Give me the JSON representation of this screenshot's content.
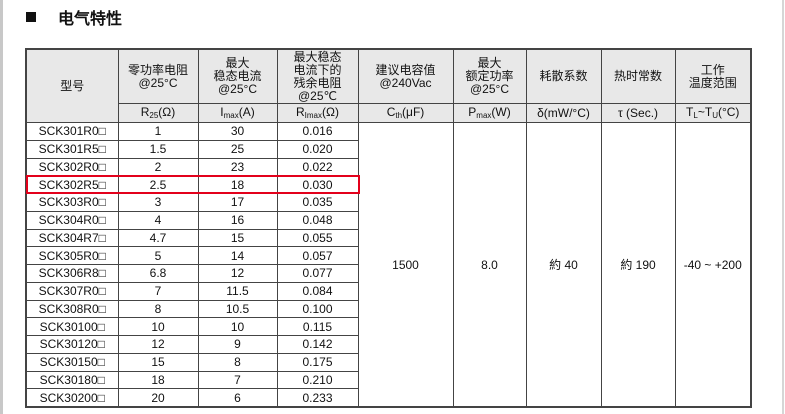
{
  "section": {
    "title": "电气特性"
  },
  "table": {
    "headers": [
      {
        "label": "型号",
        "unit": ""
      },
      {
        "label": "零功率电阻\n@25°C",
        "unit_main": "R",
        "unit_sub": "25",
        "unit_rest": "(Ω)"
      },
      {
        "label": "最大\n稳态电流\n@25°C",
        "unit_main": "I",
        "unit_sub": "max",
        "unit_rest": "(A)"
      },
      {
        "label": "最大稳态\n电流下的\n残余电阻\n@25℃",
        "unit_main": "R",
        "unit_sub": "Imax",
        "unit_rest": "(Ω)"
      },
      {
        "label": "建议电容值\n@240Vac",
        "unit_main": "C",
        "unit_sub": "th",
        "unit_rest": "(μF)"
      },
      {
        "label": "最大\n额定功率\n@25°C",
        "unit_main": "P",
        "unit_sub": "max",
        "unit_rest": "(W)"
      },
      {
        "label": "耗散系数",
        "unit_main": "δ(mW/°C)",
        "unit_sub": "",
        "unit_rest": ""
      },
      {
        "label": "热时常数",
        "unit_main": "τ (Sec.)",
        "unit_sub": "",
        "unit_rest": ""
      },
      {
        "label": "工作\n温度范围",
        "unit_main": "T",
        "unit_sub": "L",
        "unit_rest": "~T",
        "unit_sub2": "U",
        "unit_rest2": "(°C)"
      }
    ],
    "rows": [
      [
        "SCK301R0□",
        "1",
        "30",
        "0.016"
      ],
      [
        "SCK301R5□",
        "1.5",
        "25",
        "0.020"
      ],
      [
        "SCK302R0□",
        "2",
        "23",
        "0.022"
      ],
      [
        "SCK302R5□",
        "2.5",
        "18",
        "0.030"
      ],
      [
        "SCK303R0□",
        "3",
        "17",
        "0.035"
      ],
      [
        "SCK304R0□",
        "4",
        "16",
        "0.048"
      ],
      [
        "SCK304R7□",
        "4.7",
        "15",
        "0.055"
      ],
      [
        "SCK305R0□",
        "5",
        "14",
        "0.057"
      ],
      [
        "SCK306R8□",
        "6.8",
        "12",
        "0.077"
      ],
      [
        "SCK307R0□",
        "7",
        "11.5",
        "0.084"
      ],
      [
        "SCK308R0□",
        "8",
        "10.5",
        "0.100"
      ],
      [
        "SCK30100□",
        "10",
        "10",
        "0.115"
      ],
      [
        "SCK30120□",
        "12",
        "9",
        "0.142"
      ],
      [
        "SCK30150□",
        "15",
        "8",
        "0.175"
      ],
      [
        "SCK30180□",
        "18",
        "7",
        "0.210"
      ],
      [
        "SCK30200□",
        "20",
        "6",
        "0.233"
      ]
    ],
    "shared": {
      "capacitance": "1500",
      "power": "8.0",
      "dissipation": "約 40",
      "time_constant": "約 190",
      "temp_range": "-40 ~ +200"
    },
    "highlighted_row": "SCK302R5□",
    "highlight_color": "#e3001b"
  }
}
